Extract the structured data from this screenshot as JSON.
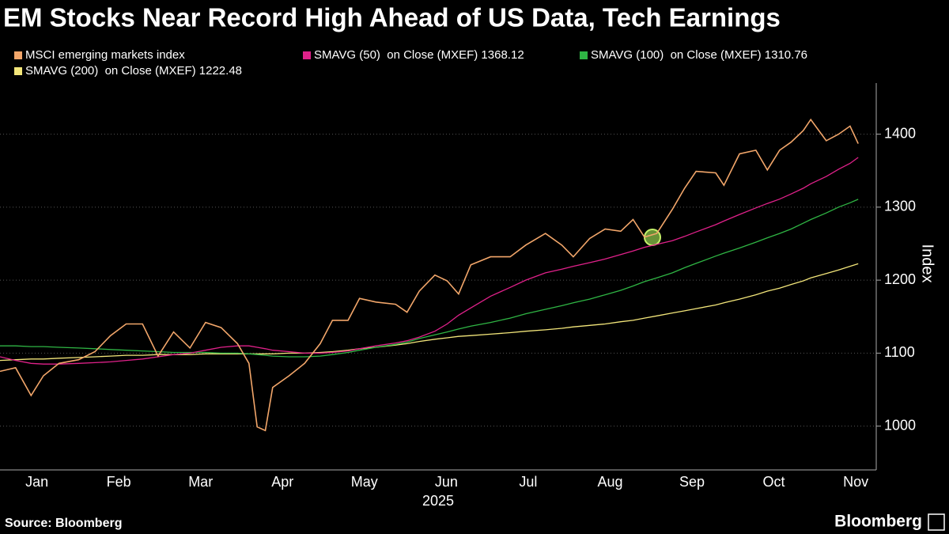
{
  "chart_data": {
    "type": "line",
    "title": "EM Stocks Near Record High Ahead of US Data, Tech Earnings",
    "source": "Source: Bloomberg",
    "brand": "Bloomberg",
    "ylabel": "Index",
    "xlabel": "2025",
    "x": [
      1.05,
      1.24,
      1.43,
      1.58,
      1.77,
      2.01,
      2.21,
      2.4,
      2.59,
      2.79,
      2.98,
      3.17,
      3.37,
      3.56,
      3.75,
      3.95,
      4.09,
      4.19,
      4.29,
      4.38,
      4.58,
      4.77,
      4.96,
      5.11,
      5.3,
      5.44,
      5.64,
      5.88,
      6.02,
      6.17,
      6.36,
      6.51,
      6.65,
      6.8,
      7.04,
      7.28,
      7.47,
      7.71,
      7.91,
      8.05,
      8.25,
      8.44,
      8.63,
      8.78,
      8.92,
      9.07,
      9.26,
      9.41,
      9.55,
      9.79,
      9.89,
      10.08,
      10.28,
      10.42,
      10.57,
      10.71,
      10.86,
      10.95,
      11.14,
      11.29,
      11.43,
      11.53
    ],
    "series": [
      {
        "name": "MSCI emerging markets index",
        "color": "#f2a66a",
        "values": [
          1075,
          1080,
          1042,
          1069,
          1086,
          1091,
          1102,
          1124,
          1140,
          1140,
          1096,
          1129,
          1107,
          1142,
          1135,
          1113,
          1086,
          999,
          994,
          1053,
          1069,
          1086,
          1113,
          1145,
          1145,
          1175,
          1170,
          1167,
          1156,
          1185,
          1207,
          1199,
          1181,
          1221,
          1232,
          1232,
          1248,
          1264,
          1248,
          1232,
          1257,
          1270,
          1267,
          1283,
          1259,
          1264,
          1297,
          1326,
          1349,
          1347,
          1330,
          1373,
          1378,
          1351,
          1378,
          1389,
          1405,
          1420,
          1391,
          1400,
          1411,
          1387
        ]
      },
      {
        "name": "SMAVG (50)  on Close (MXEF) 1368.12",
        "color": "#e0218a",
        "values": [
          1095,
          1090,
          1086,
          1085,
          1085,
          1086,
          1087,
          1088,
          1090,
          1092,
          1095,
          1098,
          1100,
          1104,
          1108,
          1110,
          1110,
          1108,
          1106,
          1104,
          1102,
          1100,
          1100,
          1101,
          1103,
          1106,
          1110,
          1114,
          1117,
          1122,
          1130,
          1140,
          1152,
          1162,
          1178,
          1190,
          1200,
          1210,
          1215,
          1219,
          1224,
          1229,
          1235,
          1240,
          1245,
          1249,
          1254,
          1260,
          1266,
          1276,
          1281,
          1290,
          1299,
          1305,
          1311,
          1318,
          1326,
          1332,
          1342,
          1352,
          1360,
          1368.12
        ]
      },
      {
        "name": "SMAVG (100)  on Close (MXEF) 1310.76",
        "color": "#2fb544",
        "values": [
          1110,
          1110,
          1109,
          1109,
          1108,
          1107,
          1106,
          1105,
          1104,
          1103,
          1102,
          1101,
          1101,
          1101,
          1100,
          1100,
          1099,
          1098,
          1097,
          1096,
          1095,
          1095,
          1096,
          1098,
          1101,
          1104,
          1108,
          1112,
          1115,
          1120,
          1125,
          1129,
          1133,
          1137,
          1142,
          1148,
          1154,
          1160,
          1165,
          1169,
          1174,
          1180,
          1186,
          1192,
          1198,
          1203,
          1210,
          1217,
          1223,
          1233,
          1237,
          1244,
          1252,
          1258,
          1264,
          1270,
          1278,
          1283,
          1292,
          1300,
          1306,
          1310.76
        ]
      },
      {
        "name": "SMAVG (200)  on Close (MXEF) 1222.48",
        "color": "#f3e67a",
        "values": [
          1090,
          1091,
          1092,
          1092,
          1093,
          1094,
          1095,
          1096,
          1097,
          1097,
          1098,
          1098,
          1098,
          1099,
          1099,
          1099,
          1099,
          1099,
          1099,
          1099,
          1100,
          1100,
          1101,
          1102,
          1104,
          1106,
          1108,
          1111,
          1113,
          1116,
          1119,
          1121,
          1123,
          1124,
          1126,
          1128,
          1130,
          1132,
          1134,
          1136,
          1138,
          1140,
          1143,
          1145,
          1148,
          1151,
          1155,
          1158,
          1161,
          1166,
          1169,
          1174,
          1180,
          1185,
          1189,
          1194,
          1199,
          1203,
          1209,
          1214,
          1219,
          1222.48
        ]
      }
    ],
    "xlim": [
      1.05,
      11.75
    ],
    "xticks": [
      {
        "value": 1.5,
        "label": "Jan"
      },
      {
        "value": 2.5,
        "label": "Feb"
      },
      {
        "value": 3.5,
        "label": "Mar"
      },
      {
        "value": 4.5,
        "label": "Apr"
      },
      {
        "value": 5.5,
        "label": "May"
      },
      {
        "value": 6.5,
        "label": "Jun"
      },
      {
        "value": 7.5,
        "label": "Jul"
      },
      {
        "value": 8.5,
        "label": "Aug"
      },
      {
        "value": 9.5,
        "label": "Sep"
      },
      {
        "value": 10.5,
        "label": "Oct"
      },
      {
        "value": 11.5,
        "label": "Nov"
      }
    ],
    "ylim": [
      940,
      1470
    ],
    "yticks": [
      1000,
      1100,
      1200,
      1300,
      1400
    ],
    "grid": true
  }
}
